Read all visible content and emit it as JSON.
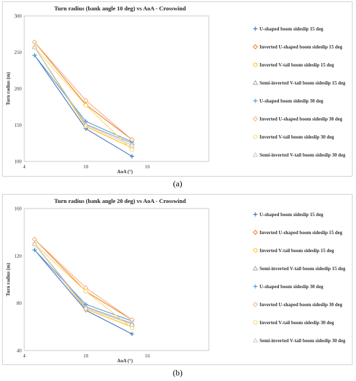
{
  "chart_data": [
    {
      "panel_label": "(a)",
      "type": "line",
      "title": "Turn radius (bank angle 10 deg) vs AoA - Crosswind",
      "xlabel": "AoA (°)",
      "ylabel": "Turn radius (m)",
      "xlim": [
        4,
        22
      ],
      "ylim": [
        100,
        300
      ],
      "xticks": [
        "4",
        "10",
        "16"
      ],
      "yticks": [
        "100",
        "150",
        "200",
        "250",
        "300"
      ],
      "grid": false,
      "legend_position": "right",
      "x": [
        5,
        10,
        14.5
      ],
      "series": [
        {
          "name": "U-shaped boom sideslip 15 deg",
          "values": [
            246,
            145,
            107
          ],
          "color": "#4472c4",
          "marker": "plus"
        },
        {
          "name": "Inverted U-shaped boom sideslip 15 deg",
          "values": [
            264,
            178,
            130
          ],
          "color": "#ed7d31",
          "marker": "diamond"
        },
        {
          "name": "Inverted V-tail boom sideslip 15 deg",
          "values": [
            257,
            148,
            119
          ],
          "color": "#ffc000",
          "marker": "circle"
        },
        {
          "name": "Semi-inverted V-tail boom sideslip 15 deg",
          "values": [
            257,
            151,
            125
          ],
          "color": "#a5a5a5",
          "marker": "triangle"
        },
        {
          "name": "U-shaped boom sideslip 30 deg",
          "values": [
            246,
            155,
            127
          ],
          "color": "#5b9bd5",
          "marker": "plus"
        },
        {
          "name": "Inverted U-shaped boom sideslip 30 deg",
          "values": [
            264,
            184,
            130
          ],
          "color": "#f4b183",
          "marker": "diamond"
        },
        {
          "name": "Inverted V-tail boom sideslip 30 deg",
          "values": [
            257,
            177,
            116
          ],
          "color": "#ffd966",
          "marker": "circle"
        },
        {
          "name": "Semi-inverted V-tail boom sideslip 30 deg",
          "values": [
            257,
            150,
            122
          ],
          "color": "#c9c9c9",
          "marker": "triangle"
        }
      ]
    },
    {
      "panel_label": "(b)",
      "type": "line",
      "title": "Turn radius (bank angle 20 deg) vs AoA - Crosswind",
      "xlabel": "AoA (°)",
      "ylabel": "Turn radius (m)",
      "xlim": [
        4,
        22
      ],
      "ylim": [
        40,
        160
      ],
      "xticks": [
        "4",
        "10",
        "16"
      ],
      "yticks": [
        "40",
        "80",
        "120",
        "160"
      ],
      "grid": false,
      "legend_position": "right",
      "x": [
        5,
        10,
        14.5
      ],
      "series": [
        {
          "name": "U-shaped boom sideslip 15 deg",
          "values": [
            125,
            74,
            54
          ],
          "color": "#4472c4",
          "marker": "plus"
        },
        {
          "name": "Inverted U-shaped boom sideslip 15 deg",
          "values": [
            134,
            90,
            66
          ],
          "color": "#ed7d31",
          "marker": "diamond"
        },
        {
          "name": "Inverted V-tail boom sideslip 15 deg",
          "values": [
            130,
            75,
            60
          ],
          "color": "#ffc000",
          "marker": "circle"
        },
        {
          "name": "Semi-inverted V-tail boom sideslip 15 deg",
          "values": [
            130,
            77,
            63
          ],
          "color": "#a5a5a5",
          "marker": "triangle"
        },
        {
          "name": "U-shaped boom sideslip 30 deg",
          "values": [
            125,
            79,
            65
          ],
          "color": "#5b9bd5",
          "marker": "plus"
        },
        {
          "name": "Inverted U-shaped boom sideslip 30 deg",
          "values": [
            134,
            93,
            66
          ],
          "color": "#f4b183",
          "marker": "diamond"
        },
        {
          "name": "Inverted V-tail boom sideslip 30 deg",
          "values": [
            130,
            90,
            59
          ],
          "color": "#ffd966",
          "marker": "circle"
        },
        {
          "name": "Semi-inverted V-tail boom sideslip 30 deg",
          "values": [
            130,
            76,
            62
          ],
          "color": "#c9c9c9",
          "marker": "triangle"
        }
      ]
    }
  ]
}
